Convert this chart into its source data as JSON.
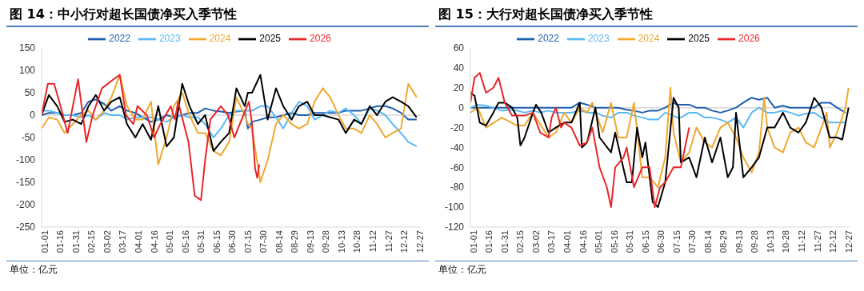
{
  "chart_data": [
    {
      "type": "line",
      "title": "图 14：中小行对超长国债净买入季节性",
      "annotations": [
        "单位：亿元"
      ],
      "legend": "top",
      "line_style": "solid",
      "marker": "none",
      "ylim": [
        -250,
        150
      ],
      "yticks": [
        -250,
        -200,
        -150,
        -100,
        -50,
        0,
        50,
        100,
        150
      ],
      "xlim": [
        "--01-01",
        "--12-31"
      ],
      "xticks": [
        {
          "value": "--01-01",
          "label": "01-01"
        },
        {
          "value": "--01-16",
          "label": "01-16"
        },
        {
          "value": "--01-31",
          "label": "01-31"
        },
        {
          "value": "--02-15",
          "label": "02-15"
        },
        {
          "value": "--03-02",
          "label": "03-02"
        },
        {
          "value": "--03-17",
          "label": "03-17"
        },
        {
          "value": "--04-01",
          "label": "04-01"
        },
        {
          "value": "--04-16",
          "label": "04-16"
        },
        {
          "value": "--05-01",
          "label": "05-01"
        },
        {
          "value": "--05-16",
          "label": "05-16"
        },
        {
          "value": "--05-31",
          "label": "05-31"
        },
        {
          "value": "--06-15",
          "label": "06-15"
        },
        {
          "value": "--06-30",
          "label": "06-30"
        },
        {
          "value": "--07-15",
          "label": "07-15"
        },
        {
          "value": "--07-30",
          "label": "07-30"
        },
        {
          "value": "--08-14",
          "label": "08-14"
        },
        {
          "value": "--08-29",
          "label": "08-29"
        },
        {
          "value": "--09-13",
          "label": "09-13"
        },
        {
          "value": "--09-28",
          "label": "09-28"
        },
        {
          "value": "--10-13",
          "label": "10-13"
        },
        {
          "value": "--10-28",
          "label": "10-28"
        },
        {
          "value": "--11-12",
          "label": "11-12"
        },
        {
          "value": "--11-27",
          "label": "11-27"
        },
        {
          "value": "--12-12",
          "label": "12-12"
        },
        {
          "value": "--12-27",
          "label": "12-27"
        }
      ],
      "ref_lines": [
        {
          "axis": "y",
          "value": 0,
          "color": "#d9d9d9"
        }
      ],
      "x": [
        "--01-01",
        "--01-08",
        "--01-16",
        "--01-23",
        "--01-31",
        "--02-08",
        "--02-15",
        "--02-22",
        "--03-02",
        "--03-09",
        "--03-17",
        "--03-24",
        "--04-01",
        "--04-08",
        "--04-16",
        "--04-23",
        "--05-01",
        "--05-08",
        "--05-16",
        "--05-23",
        "--05-31",
        "--06-07",
        "--06-15",
        "--06-22",
        "--06-30",
        "--07-07",
        "--07-15",
        "--07-18",
        "--07-22",
        "--07-30",
        "--08-06",
        "--08-14",
        "--08-21",
        "--08-29",
        "--09-05",
        "--09-13",
        "--09-20",
        "--09-28",
        "--10-05",
        "--10-13",
        "--10-20",
        "--10-28",
        "--11-04",
        "--11-12",
        "--11-19",
        "--11-27",
        "--12-04",
        "--12-12",
        "--12-19",
        "--12-27"
      ],
      "series": [
        {
          "name": "2022",
          "color": "#1f5fae",
          "values": [
            0,
            5,
            5,
            0,
            0,
            5,
            30,
            35,
            25,
            10,
            20,
            10,
            5,
            -5,
            -15,
            -10,
            0,
            -5,
            0,
            5,
            5,
            15,
            10,
            8,
            5,
            8,
            10,
            -30,
            -15,
            -10,
            -5,
            -5,
            0,
            5,
            0,
            0,
            5,
            5,
            5,
            5,
            10,
            10,
            10,
            15,
            20,
            20,
            15,
            5,
            -10,
            -10
          ]
        },
        {
          "name": "2023",
          "color": "#5bb8f5",
          "values": [
            10,
            10,
            5,
            0,
            0,
            -5,
            0,
            -10,
            5,
            0,
            0,
            -10,
            -5,
            -5,
            -5,
            -10,
            -15,
            -5,
            0,
            -5,
            -5,
            -20,
            -50,
            -30,
            0,
            10,
            10,
            10,
            10,
            20,
            20,
            -5,
            -30,
            5,
            30,
            20,
            -10,
            0,
            10,
            5,
            15,
            0,
            -20,
            15,
            10,
            0,
            -20,
            -40,
            -60,
            -70
          ]
        },
        {
          "name": "2024",
          "color": "#f0a830",
          "values": [
            -30,
            -5,
            -10,
            -40,
            -20,
            0,
            10,
            -10,
            10,
            40,
            90,
            20,
            -10,
            -10,
            30,
            -110,
            -50,
            20,
            50,
            0,
            -40,
            -40,
            -80,
            -90,
            -60,
            40,
            0,
            -20,
            -30,
            -150,
            -100,
            -20,
            0,
            -20,
            -30,
            -20,
            30,
            60,
            40,
            0,
            -30,
            -30,
            -40,
            0,
            -20,
            -50,
            -40,
            -30,
            70,
            40
          ]
        },
        {
          "name": "2025",
          "color": "#000000",
          "values": [
            0,
            45,
            20,
            -15,
            -10,
            -20,
            20,
            45,
            10,
            30,
            40,
            -20,
            -50,
            -20,
            -55,
            20,
            -70,
            -50,
            70,
            20,
            -20,
            0,
            -80,
            -60,
            -40,
            60,
            20,
            50,
            50,
            90,
            -10,
            60,
            20,
            -10,
            20,
            30,
            0,
            0,
            -5,
            -10,
            -40,
            -10,
            -20,
            20,
            0,
            30,
            40,
            30,
            20,
            -5
          ]
        },
        {
          "name": "2026",
          "color": "#e8262a",
          "x": [
            "--01-01",
            "--01-07",
            "--01-13",
            "--01-18",
            "--01-26",
            "--02-05",
            "--02-13",
            "--02-19",
            "--02-28",
            "--03-11",
            "--03-17",
            "--03-23",
            "--03-30",
            "--04-03",
            "--04-12",
            "--04-19",
            "--04-25",
            "--05-05",
            "--05-09",
            "--05-12",
            "--05-22",
            "--05-28",
            "--06-03",
            "--06-07",
            "--06-12",
            "--06-22",
            "--06-29",
            "--07-05",
            "--07-19",
            "--07-22",
            "--07-25",
            "--07-27",
            "--07-29"
          ],
          "values": [
            0,
            70,
            70,
            30,
            -40,
            80,
            -60,
            0,
            60,
            80,
            90,
            0,
            -20,
            20,
            0,
            -50,
            -20,
            20,
            -10,
            30,
            -60,
            -180,
            -190,
            -100,
            -10,
            20,
            0,
            -50,
            30,
            -20,
            -120,
            -140,
            -110
          ]
        }
      ]
    },
    {
      "type": "line",
      "title": "图 15：大行对超长国债净买入季节性",
      "annotations": [
        "单位：亿元"
      ],
      "legend": "top",
      "line_style": "solid",
      "marker": "none",
      "ylim": [
        -120,
        60
      ],
      "yticks": [
        -120,
        -100,
        -80,
        -60,
        -40,
        -20,
        0,
        20,
        40,
        60
      ],
      "xlim": [
        "--01-01",
        "--12-31"
      ],
      "xticks": [
        {
          "value": "--01-01",
          "label": "01-01"
        },
        {
          "value": "--01-16",
          "label": "01-16"
        },
        {
          "value": "--01-31",
          "label": "01-31"
        },
        {
          "value": "--02-15",
          "label": "02-15"
        },
        {
          "value": "--03-02",
          "label": "03-02"
        },
        {
          "value": "--03-17",
          "label": "03-17"
        },
        {
          "value": "--04-01",
          "label": "04-01"
        },
        {
          "value": "--04-16",
          "label": "04-16"
        },
        {
          "value": "--05-01",
          "label": "05-01"
        },
        {
          "value": "--05-16",
          "label": "05-16"
        },
        {
          "value": "--05-31",
          "label": "05-31"
        },
        {
          "value": "--06-15",
          "label": "06-15"
        },
        {
          "value": "--06-30",
          "label": "06-30"
        },
        {
          "value": "--07-15",
          "label": "07-15"
        },
        {
          "value": "--07-30",
          "label": "07-30"
        },
        {
          "value": "--08-14",
          "label": "08-14"
        },
        {
          "value": "--08-29",
          "label": "08-29"
        },
        {
          "value": "--09-13",
          "label": "09-13"
        },
        {
          "value": "--09-28",
          "label": "09-28"
        },
        {
          "value": "--10-13",
          "label": "10-13"
        },
        {
          "value": "--10-28",
          "label": "10-28"
        },
        {
          "value": "--11-12",
          "label": "11-12"
        },
        {
          "value": "--11-27",
          "label": "11-27"
        },
        {
          "value": "--12-12",
          "label": "12-12"
        },
        {
          "value": "--12-27",
          "label": "12-27"
        }
      ],
      "ref_lines": [
        {
          "axis": "y",
          "value": 0,
          "color": "#d9d9d9"
        }
      ],
      "x": [
        "--01-01",
        "--01-08",
        "--01-16",
        "--01-23",
        "--01-31",
        "--02-08",
        "--02-15",
        "--02-22",
        "--03-02",
        "--03-09",
        "--03-17",
        "--03-24",
        "--04-01",
        "--04-08",
        "--04-16",
        "--04-23",
        "--05-01",
        "--05-08",
        "--05-16",
        "--05-23",
        "--05-31",
        "--06-07",
        "--06-15",
        "--06-22",
        "--06-30",
        "--07-07",
        "--07-15",
        "--07-18",
        "--07-22",
        "--07-30",
        "--08-06",
        "--08-14",
        "--08-21",
        "--08-29",
        "--09-05",
        "--09-13",
        "--09-20",
        "--09-28",
        "--10-05",
        "--10-13",
        "--10-20",
        "--10-28",
        "--11-04",
        "--11-12",
        "--11-19",
        "--11-27",
        "--12-04",
        "--12-12",
        "--12-19",
        "--12-27"
      ],
      "series": [
        {
          "name": "2022",
          "color": "#1f5fae",
          "values": [
            0,
            0,
            0,
            0,
            0,
            0,
            0,
            0,
            0,
            0,
            0,
            0,
            0,
            0,
            5,
            3,
            0,
            0,
            0,
            0,
            -2,
            -3,
            -5,
            -3,
            -3,
            0,
            5,
            3,
            3,
            3,
            0,
            0,
            -3,
            -5,
            -3,
            0,
            5,
            10,
            8,
            10,
            0,
            2,
            0,
            0,
            0,
            0,
            5,
            5,
            0,
            -5
          ]
        },
        {
          "name": "2023",
          "color": "#5bb8f5",
          "values": [
            0,
            3,
            2,
            0,
            -3,
            -2,
            -3,
            -5,
            -3,
            -5,
            -3,
            -5,
            -5,
            -5,
            -3,
            -5,
            -5,
            -8,
            -10,
            -5,
            -5,
            -8,
            -10,
            -12,
            -12,
            -5,
            -8,
            -10,
            -10,
            -5,
            -5,
            -10,
            -10,
            -12,
            -15,
            -10,
            -20,
            -5,
            0,
            -5,
            -5,
            -3,
            -5,
            -8,
            -6,
            -5,
            -10,
            -15,
            -15,
            -15
          ]
        },
        {
          "name": "2024",
          "color": "#f0a830",
          "x": [
            "--01-01",
            "--01-08",
            "--01-16",
            "--01-31",
            "--02-15",
            "--02-22",
            "--03-02",
            "--03-17",
            "--03-24",
            "--04-01",
            "--04-08",
            "--04-16",
            "--04-23",
            "--04-28",
            "--05-08",
            "--05-16",
            "--05-23",
            "--05-31",
            "--06-07",
            "--06-15",
            "--06-22",
            "--06-30",
            "--07-07",
            "--07-12",
            "--07-15",
            "--07-22",
            "--07-30",
            "--08-06",
            "--08-14",
            "--08-21",
            "--08-29",
            "--09-05",
            "--09-13",
            "--09-20",
            "--09-28",
            "--10-05",
            "--10-10",
            "--10-13",
            "--10-20",
            "--10-28",
            "--11-04",
            "--11-12",
            "--11-19",
            "--11-27",
            "--12-04",
            "--12-09",
            "--12-12",
            "--12-19",
            "--12-27",
            "--12-30"
          ],
          "values": [
            -5,
            0,
            -20,
            -10,
            -18,
            -18,
            -5,
            -30,
            -25,
            -5,
            -15,
            0,
            -5,
            5,
            -25,
            5,
            -30,
            -30,
            5,
            -70,
            -70,
            -80,
            -50,
            20,
            -25,
            -55,
            -45,
            -20,
            -35,
            -40,
            -20,
            -15,
            -30,
            -50,
            -65,
            -45,
            10,
            -20,
            -40,
            -45,
            -25,
            -20,
            -35,
            -40,
            -20,
            -5,
            -40,
            -25,
            0,
            20
          ]
        },
        {
          "name": "2025",
          "color": "#000000",
          "x": [
            "--01-01",
            "--01-05",
            "--01-10",
            "--01-16",
            "--01-23",
            "--01-28",
            "--02-03",
            "--02-10",
            "--02-15",
            "--02-18",
            "--02-22",
            "--03-02",
            "--03-05",
            "--03-10",
            "--03-17",
            "--03-24",
            "--04-01",
            "--04-08",
            "--04-16",
            "--04-18",
            "--04-23",
            "--05-01",
            "--05-05",
            "--05-16",
            "--05-20",
            "--05-31",
            "--06-05",
            "--06-10",
            "--06-15",
            "--06-18",
            "--06-25",
            "--06-30",
            "--07-07",
            "--07-15",
            "--07-20",
            "--07-22",
            "--07-30",
            "--08-06",
            "--08-14",
            "--08-21",
            "--08-29",
            "--09-05",
            "--09-10",
            "--09-13",
            "--09-20",
            "--09-28",
            "--10-05",
            "--10-13",
            "--10-20",
            "--10-28",
            "--11-04",
            "--11-12",
            "--11-19",
            "--11-27",
            "--12-04",
            "--12-12",
            "--12-19",
            "--12-24",
            "--12-30"
          ],
          "values": [
            15,
            12,
            -15,
            -18,
            -5,
            5,
            5,
            0,
            -10,
            -38,
            -30,
            -5,
            3,
            -5,
            -25,
            -20,
            -15,
            -15,
            5,
            -40,
            -35,
            0,
            -30,
            -45,
            -25,
            -75,
            -75,
            -20,
            -50,
            -35,
            -95,
            -100,
            -75,
            10,
            0,
            -55,
            -50,
            -70,
            -30,
            -55,
            -30,
            -70,
            -60,
            -5,
            -70,
            -60,
            -50,
            -20,
            -20,
            -5,
            -20,
            -25,
            -15,
            10,
            0,
            -30,
            -30,
            -32,
            0
          ]
        },
        {
          "name": "2026",
          "color": "#e8262a",
          "x": [
            "--01-01",
            "--01-05",
            "--01-10",
            "--01-16",
            "--01-23",
            "--01-28",
            "--02-03",
            "--02-10",
            "--02-22",
            "--03-02",
            "--03-09",
            "--03-17",
            "--03-20",
            "--03-24",
            "--03-29",
            "--04-01",
            "--04-08",
            "--04-16",
            "--04-23",
            "--04-28",
            "--05-05",
            "--05-12",
            "--05-16",
            "--05-20",
            "--05-28",
            "--05-31",
            "--06-07",
            "--06-15",
            "--06-22",
            "--06-27",
            "--07-02",
            "--07-07",
            "--07-15",
            "--07-22",
            "--07-30"
          ],
          "values": [
            5,
            30,
            35,
            15,
            20,
            30,
            5,
            -8,
            -8,
            -5,
            -25,
            -30,
            -10,
            0,
            -20,
            -15,
            -20,
            -38,
            -35,
            -20,
            -60,
            -80,
            -100,
            -60,
            -50,
            -40,
            -80,
            -60,
            -60,
            -100,
            -80,
            -75,
            -60,
            -60,
            -20
          ]
        }
      ]
    }
  ]
}
